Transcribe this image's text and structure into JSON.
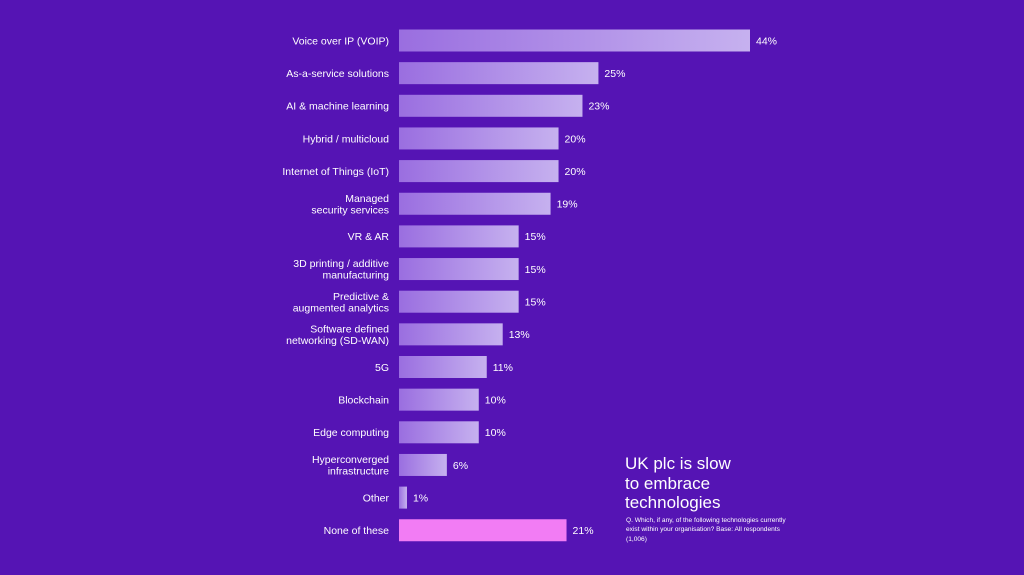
{
  "headline": "UK plc is slow\nto embrace\ntechnologies",
  "question": "Q. Which, if any, of the following technologies currently exist within your organisation? Base: All respondents (1,006)",
  "colors": {
    "background": "#5514b4",
    "bar_gradient_start": "#9a6ee0",
    "bar_gradient_end": "#c6b1ef",
    "highlight_bar": "#f27cf4"
  },
  "chart_data": {
    "type": "bar",
    "orientation": "horizontal",
    "title": "",
    "xlabel": "",
    "ylabel": "",
    "value_suffix": "%",
    "xlim": [
      0,
      44
    ],
    "grid": false,
    "highlight_category": "None of these",
    "categories": [
      "Voice over IP (VOIP)",
      "As-a-service solutions",
      "AI & machine learning",
      "Hybrid / multicloud",
      "Internet of Things (IoT)",
      "Managed\nsecurity services",
      "VR & AR",
      "3D printing / additive\nmanufacturing",
      "Predictive &\naugmented analytics",
      "Software defined\nnetworking (SD-WAN)",
      "5G",
      "Blockchain",
      "Edge computing",
      "Hyperconverged\ninfrastructure",
      "Other",
      "None of these"
    ],
    "values": [
      44,
      25,
      23,
      20,
      20,
      19,
      15,
      15,
      15,
      13,
      11,
      10,
      10,
      6,
      1,
      21
    ]
  }
}
